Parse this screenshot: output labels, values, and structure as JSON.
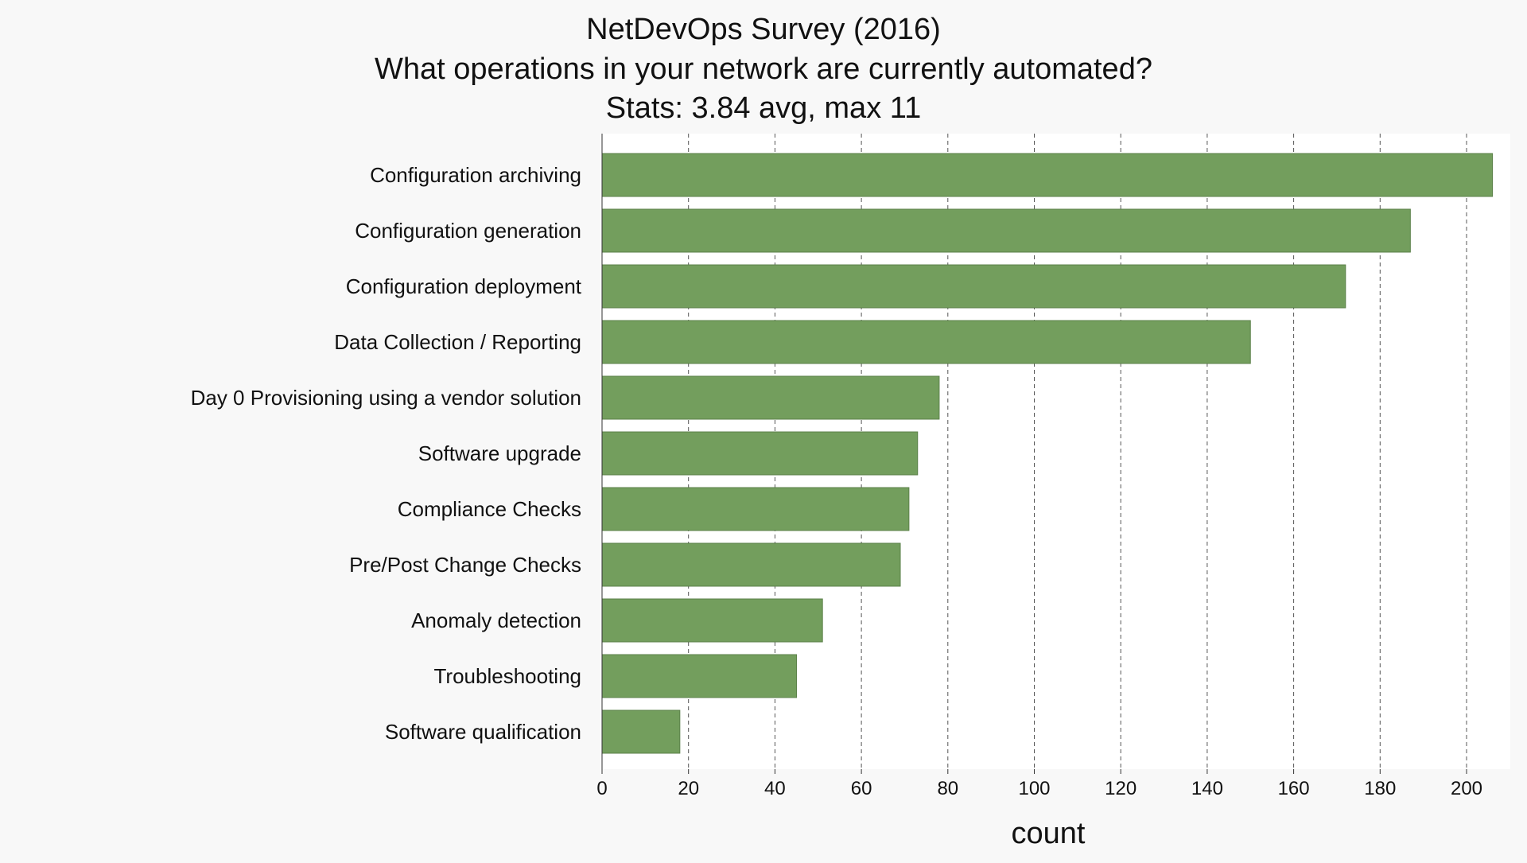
{
  "chart_data": {
    "type": "bar",
    "orientation": "horizontal",
    "title_lines": [
      "NetDevOps Survey (2016)",
      "What operations in your network are currently automated?",
      "Stats: 3.84 avg, max 11"
    ],
    "xlabel": "count",
    "ylabel": "",
    "categories": [
      "Configuration archiving",
      "Configuration generation",
      "Configuration deployment",
      "Data Collection / Reporting",
      "Day 0 Provisioning using a vendor solution",
      "Software upgrade",
      "Compliance Checks",
      "Pre/Post Change Checks",
      "Anomaly detection",
      "Troubleshooting",
      "Software qualification"
    ],
    "values": [
      206,
      187,
      172,
      150,
      78,
      73,
      71,
      69,
      51,
      45,
      18
    ],
    "xlim": [
      0,
      210
    ],
    "xticks": [
      0,
      20,
      40,
      60,
      80,
      100,
      120,
      140,
      160,
      180,
      200
    ],
    "xtick_labels": [
      "0",
      "20",
      "40",
      "60",
      "80",
      "100",
      "120",
      "140",
      "160",
      "180",
      "200"
    ],
    "grid": true,
    "bar_color": "#739e5d",
    "bar_edge_color": "#5b8049",
    "plot_background": "#ffffff",
    "page_background": "#f8f8f8"
  }
}
